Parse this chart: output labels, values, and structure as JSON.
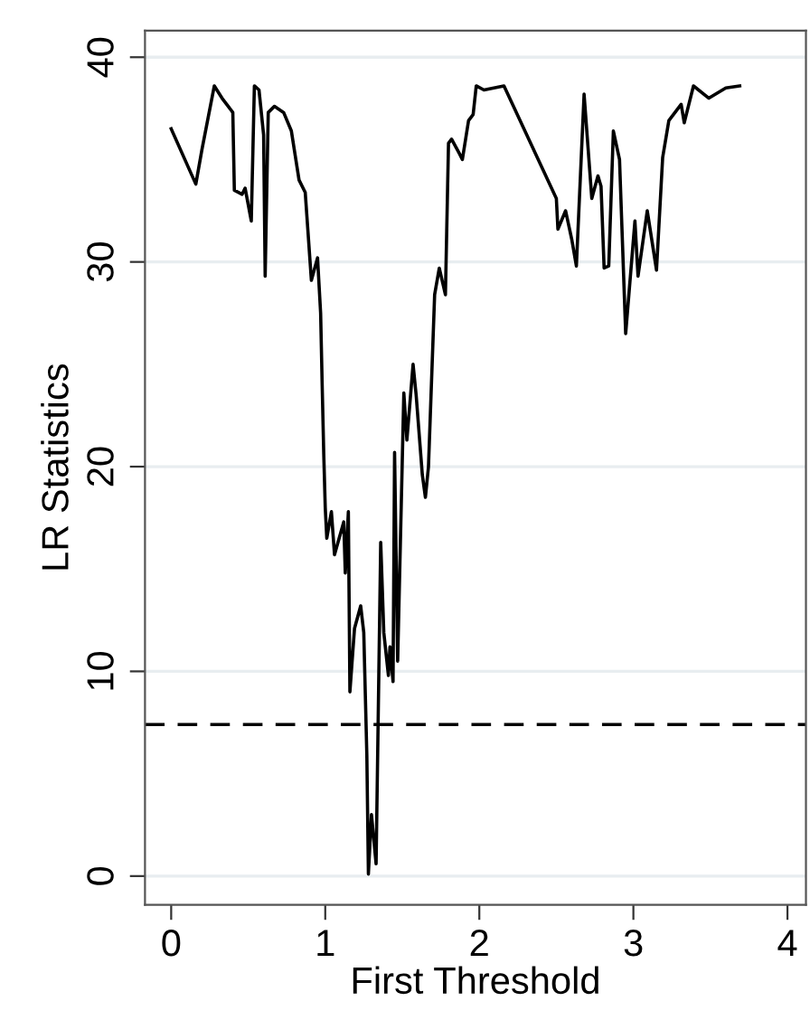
{
  "chart_data": {
    "type": "line",
    "xlabel": "First Threshold",
    "ylabel": "LR Statistics",
    "xlim": [
      -0.17,
      4.12
    ],
    "xticks": [
      0,
      1,
      2,
      3,
      4
    ],
    "ylim": [
      -1.4,
      41.3
    ],
    "yticks": [
      0,
      10,
      20,
      30,
      40
    ],
    "grid": "y",
    "series": [
      {
        "color": "#000000",
        "line_style": "solid",
        "x": [
          0,
          0.16,
          0.2,
          0.28,
          0.33,
          0.4,
          0.41,
          0.46,
          0.48,
          0.52,
          0.54,
          0.57,
          0.6,
          0.61,
          0.63,
          0.67,
          0.73,
          0.78,
          0.83,
          0.87,
          0.91,
          0.95,
          0.97,
          0.98,
          0.99,
          1.0,
          1.01,
          1.04,
          1.06,
          1.12,
          1.13,
          1.15,
          1.16,
          1.19,
          1.23,
          1.25,
          1.27,
          1.28,
          1.3,
          1.33,
          1.36,
          1.38,
          1.41,
          1.42,
          1.44,
          1.45,
          1.47,
          1.51,
          1.53,
          1.57,
          1.59,
          1.63,
          1.65,
          1.67,
          1.71,
          1.74,
          1.78,
          1.8,
          1.82,
          1.87,
          1.89,
          1.93,
          1.96,
          1.98,
          2.03,
          2.16,
          2.5,
          2.51,
          2.56,
          2.6,
          2.63,
          2.68,
          2.73,
          2.77,
          2.79,
          2.81,
          2.84,
          2.87,
          2.91,
          2.95,
          3.01,
          3.03,
          3.09,
          3.15,
          3.19,
          3.23,
          3.31,
          3.33,
          3.39,
          3.49,
          3.6,
          3.69
        ],
        "values": [
          36.5,
          33.8,
          35.5,
          38.6,
          38.0,
          37.3,
          33.5,
          33.3,
          33.6,
          32,
          38.6,
          38.4,
          36.2,
          29.3,
          37.3,
          37.6,
          37.3,
          36.4,
          34,
          33.4,
          29.1,
          30.2,
          27.5,
          24,
          20.7,
          18,
          16.5,
          17.8,
          15.7,
          17.3,
          14.8,
          17.8,
          9,
          12.1,
          13.2,
          11.9,
          5.9,
          0.1,
          3.0,
          0.6,
          16.3,
          11.9,
          9.8,
          11.2,
          9.5,
          20.7,
          10.5,
          23.6,
          21.3,
          25,
          23.5,
          19.6,
          18.5,
          20,
          28.4,
          29.7,
          28.4,
          35.8,
          36,
          35.3,
          35,
          36.9,
          37.2,
          38.6,
          38.4,
          38.6,
          33.1,
          31.6,
          32.5,
          31.1,
          29.8,
          38.2,
          33.1,
          34.2,
          33.7,
          29.7,
          29.8,
          36.4,
          35,
          26.5,
          32,
          29.3,
          32.5,
          29.6,
          35.1,
          36.9,
          37.7,
          36.8,
          38.6,
          38,
          38.5,
          38.6
        ]
      }
    ],
    "ref_lines": [
      {
        "axis": "y",
        "value": 7.4,
        "color": "#000000",
        "line_style": "dashed"
      }
    ]
  }
}
